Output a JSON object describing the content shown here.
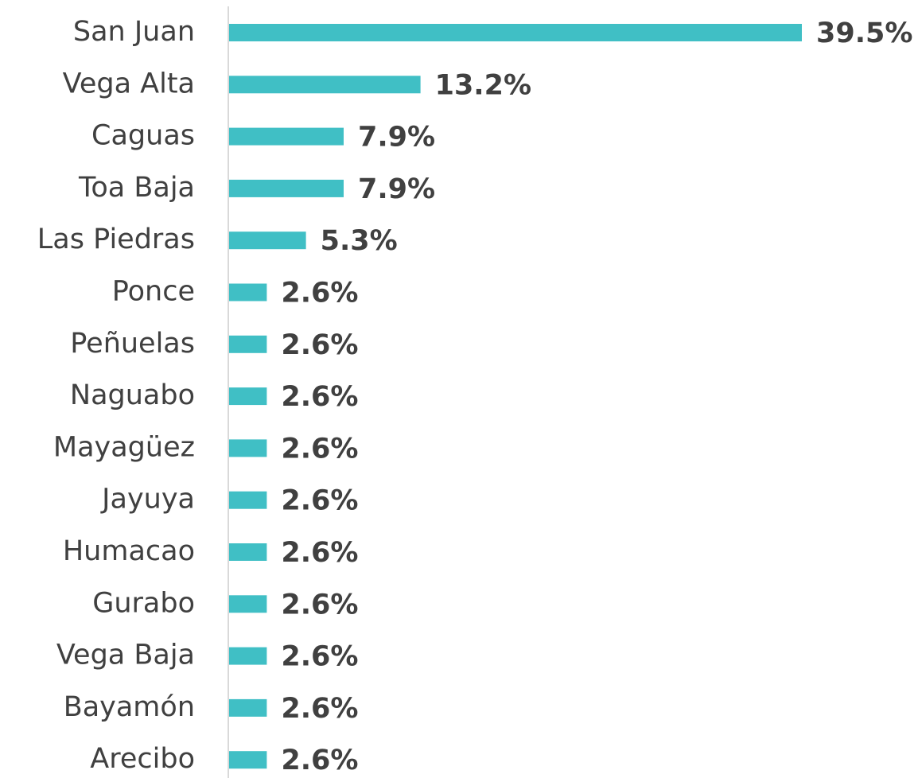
{
  "chart_data": {
    "type": "bar",
    "orientation": "horizontal",
    "categories": [
      "San Juan",
      "Vega Alta",
      "Caguas",
      "Toa Baja",
      "Las Piedras",
      "Ponce",
      "Peñuelas",
      "Naguabo",
      "Mayagüez",
      "Jayuya",
      "Humacao",
      "Gurabo",
      "Vega Baja",
      "Bayamón",
      "Arecibo"
    ],
    "values": [
      39.5,
      13.2,
      7.9,
      7.9,
      5.3,
      2.6,
      2.6,
      2.6,
      2.6,
      2.6,
      2.6,
      2.6,
      2.6,
      2.6,
      2.6
    ],
    "value_labels": [
      "39.5%",
      "13.2%",
      "7.9%",
      "7.9%",
      "5.3%",
      "2.6%",
      "2.6%",
      "2.6%",
      "2.6%",
      "2.6%",
      "2.6%",
      "2.6%",
      "2.6%",
      "2.6%",
      "2.6%"
    ],
    "color": "#40bfc5"
  }
}
